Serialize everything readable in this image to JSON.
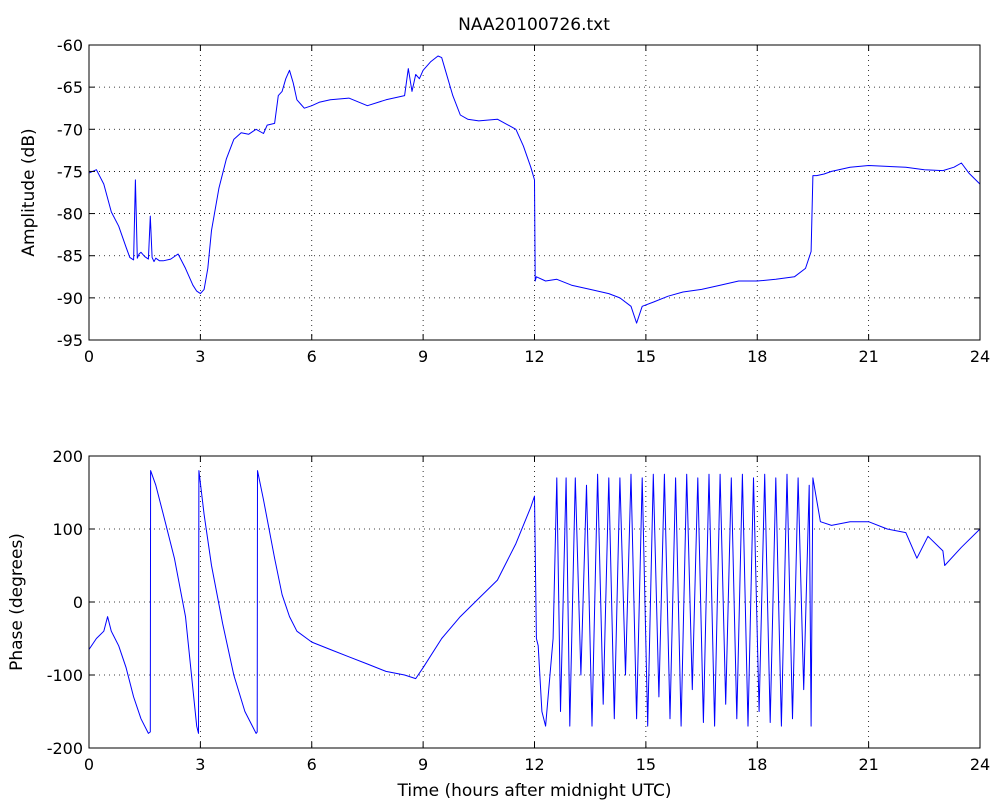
{
  "figure_title": "NAA20100726.txt",
  "chart_data": [
    {
      "type": "line",
      "title": "NAA20100726.txt",
      "xlabel": "",
      "ylabel": "Amplitude (dB)",
      "xlim": [
        0,
        24
      ],
      "ylim": [
        -95,
        -60
      ],
      "xticks": [
        0,
        3,
        6,
        9,
        12,
        15,
        18,
        21,
        24
      ],
      "yticks": [
        -95,
        -90,
        -85,
        -80,
        -75,
        -70,
        -65,
        -60
      ],
      "grid": true,
      "color": "#0000ff",
      "series": [
        {
          "x": [
            0,
            0.2,
            0.4,
            0.6,
            0.8,
            1.0,
            1.1,
            1.2,
            1.25,
            1.3,
            1.35,
            1.4,
            1.5,
            1.6,
            1.65,
            1.7,
            1.75,
            1.8,
            1.9,
            2.0,
            2.2,
            2.4,
            2.6,
            2.8,
            2.9,
            3.0,
            3.1,
            3.2,
            3.3,
            3.5,
            3.7,
            3.9,
            4.1,
            4.3,
            4.5,
            4.7,
            4.8,
            5.0,
            5.1,
            5.2,
            5.3,
            5.4,
            5.5,
            5.6,
            5.7,
            5.8,
            6.0,
            6.2,
            6.5,
            7.0,
            7.5,
            8.0,
            8.5,
            8.6,
            8.7,
            8.8,
            8.9,
            9.0,
            9.2,
            9.4,
            9.5,
            9.6,
            9.8,
            10.0,
            10.2,
            10.5,
            11.0,
            11.5,
            11.7,
            11.9,
            12.0,
            12.02,
            12.05,
            12.3,
            12.6,
            13.0,
            13.5,
            14.0,
            14.3,
            14.6,
            14.75,
            14.9,
            15.2,
            15.6,
            16.0,
            16.5,
            17.0,
            17.5,
            18.0,
            18.5,
            19.0,
            19.3,
            19.45,
            19.5,
            19.6,
            19.8,
            20.0,
            20.5,
            21.0,
            21.5,
            22.0,
            22.5,
            23.0,
            23.3,
            23.5,
            23.7,
            24.0
          ],
          "values": [
            -75.2,
            -74.8,
            -76.5,
            -79.8,
            -81.5,
            -84.0,
            -85.2,
            -85.5,
            -76.0,
            -85.3,
            -84.8,
            -84.6,
            -85.1,
            -85.4,
            -80.3,
            -85.2,
            -85.7,
            -85.3,
            -85.6,
            -85.6,
            -85.4,
            -84.8,
            -86.5,
            -88.5,
            -89.2,
            -89.5,
            -89.0,
            -86.5,
            -82.0,
            -77.0,
            -73.5,
            -71.2,
            -70.4,
            -70.6,
            -70.0,
            -70.5,
            -69.5,
            -69.3,
            -66.0,
            -65.5,
            -64.0,
            -63.0,
            -64.5,
            -66.5,
            -67.0,
            -67.5,
            -67.2,
            -66.8,
            -66.5,
            -66.3,
            -67.2,
            -66.5,
            -66.0,
            -62.8,
            -65.5,
            -63.5,
            -64.0,
            -63.0,
            -62.0,
            -61.3,
            -61.5,
            -63.0,
            -66.0,
            -68.3,
            -68.8,
            -69.0,
            -68.8,
            -70.0,
            -72.0,
            -74.5,
            -76.0,
            -88.0,
            -87.5,
            -88.0,
            -87.8,
            -88.5,
            -89.0,
            -89.5,
            -90.0,
            -91.0,
            -93.0,
            -91.0,
            -90.5,
            -89.8,
            -89.3,
            -89.0,
            -88.5,
            -88.0,
            -88.0,
            -87.8,
            -87.5,
            -86.5,
            -84.5,
            -75.5,
            -75.5,
            -75.3,
            -75.0,
            -74.5,
            -74.3,
            -74.4,
            -74.5,
            -74.8,
            -74.9,
            -74.5,
            -74.0,
            -75.2,
            -76.5
          ]
        }
      ]
    },
    {
      "type": "line",
      "title": "",
      "xlabel": "Time (hours after midnight UTC)",
      "ylabel": "Phase (degrees)",
      "xlim": [
        0,
        24
      ],
      "ylim": [
        -200,
        200
      ],
      "xticks": [
        0,
        3,
        6,
        9,
        12,
        15,
        18,
        21,
        24
      ],
      "yticks": [
        -200,
        -100,
        0,
        100,
        200
      ],
      "grid": true,
      "color": "#0000ff",
      "series": [
        {
          "x": [
            0,
            0.2,
            0.4,
            0.5,
            0.6,
            0.8,
            1.0,
            1.2,
            1.4,
            1.6,
            1.65,
            1.66,
            1.8,
            2.0,
            2.3,
            2.6,
            2.9,
            2.95,
            2.96,
            3.1,
            3.3,
            3.6,
            3.9,
            4.2,
            4.5,
            4.53,
            4.54,
            4.7,
            5.0,
            5.2,
            5.4,
            5.6,
            6.0,
            6.5,
            7.0,
            7.5,
            8.0,
            8.5,
            8.8,
            9.0,
            9.5,
            10.0,
            10.5,
            11.0,
            11.5,
            11.9,
            12.0,
            12.05,
            12.1,
            12.2,
            12.3,
            12.5,
            12.6,
            12.7,
            12.85,
            12.95,
            13.1,
            13.25,
            13.4,
            13.55,
            13.7,
            13.85,
            14.0,
            14.15,
            14.3,
            14.45,
            14.6,
            14.75,
            14.9,
            15.05,
            15.2,
            15.35,
            15.5,
            15.65,
            15.8,
            15.95,
            16.1,
            16.25,
            16.4,
            16.55,
            16.7,
            16.85,
            17.0,
            17.15,
            17.3,
            17.45,
            17.6,
            17.75,
            17.9,
            18.05,
            18.2,
            18.35,
            18.5,
            18.65,
            18.8,
            18.95,
            19.1,
            19.25,
            19.4,
            19.45,
            19.5,
            19.7,
            20.0,
            20.5,
            21.0,
            21.5,
            22.0,
            22.3,
            22.6,
            23.0,
            23.05,
            23.5,
            24.0
          ],
          "values": [
            -65,
            -50,
            -40,
            -20,
            -40,
            -60,
            -90,
            -130,
            -160,
            -180,
            -178,
            180,
            160,
            120,
            60,
            -20,
            -170,
            -180,
            180,
            120,
            50,
            -30,
            -100,
            -150,
            -180,
            -178,
            180,
            140,
            60,
            10,
            -20,
            -40,
            -55,
            -65,
            -75,
            -85,
            -95,
            -100,
            -105,
            -90,
            -50,
            -20,
            5,
            30,
            80,
            130,
            145,
            -50,
            -60,
            -150,
            -170,
            -50,
            170,
            -150,
            170,
            -170,
            170,
            -100,
            160,
            -170,
            175,
            -140,
            170,
            -160,
            170,
            -100,
            175,
            -160,
            170,
            -170,
            175,
            -130,
            175,
            -160,
            170,
            -170,
            175,
            -120,
            170,
            -165,
            175,
            -170,
            175,
            -140,
            170,
            -160,
            175,
            -170,
            170,
            -150,
            175,
            -165,
            170,
            -170,
            175,
            -160,
            170,
            -120,
            160,
            -170,
            170,
            110,
            105,
            110,
            110,
            100,
            95,
            60,
            90,
            70,
            50,
            75,
            100
          ]
        }
      ]
    }
  ]
}
